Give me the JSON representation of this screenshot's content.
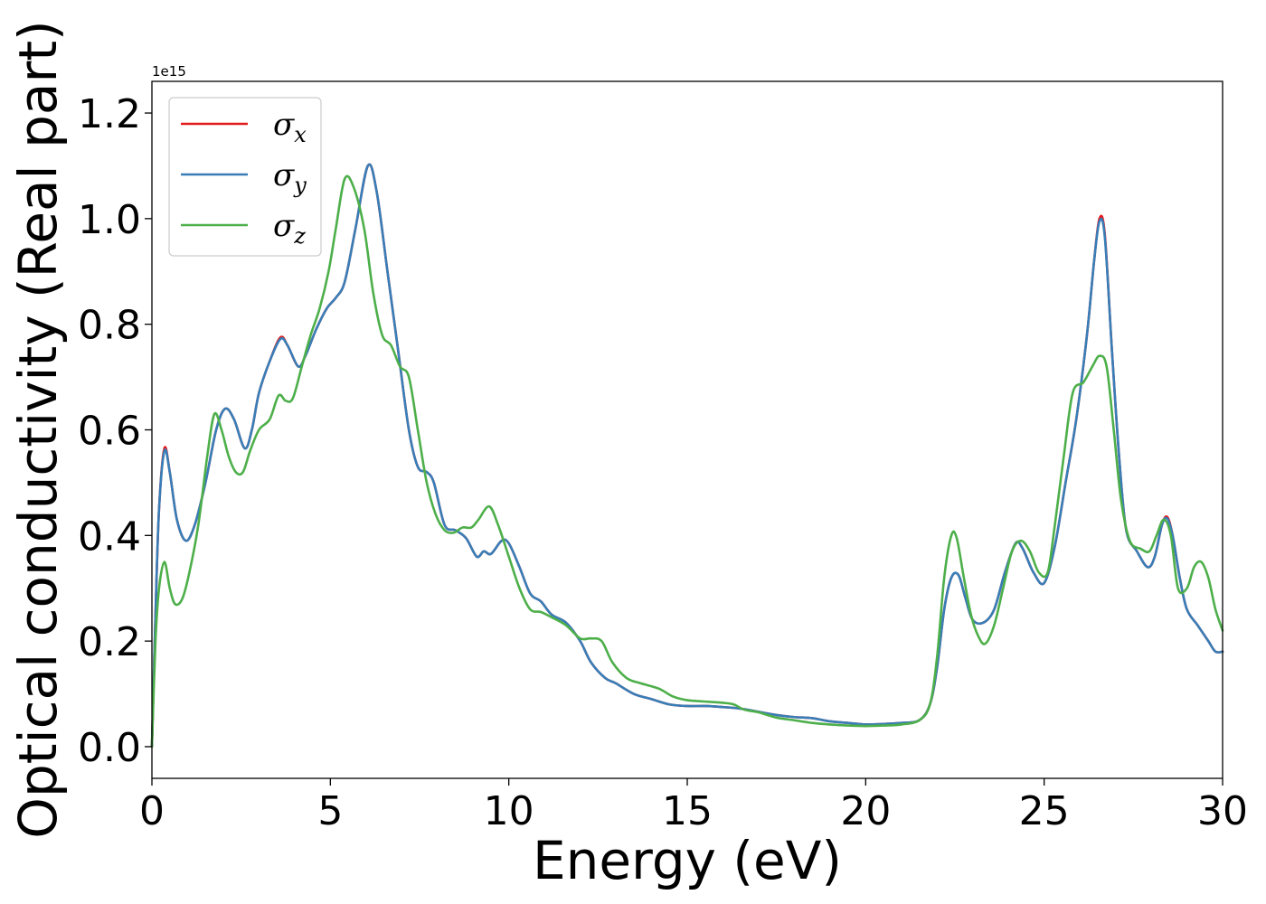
{
  "chart_data": {
    "type": "line",
    "title": "",
    "xlabel": "Energy (eV)",
    "ylabel": "Optical conductivity (Real part)",
    "y_offset_text": "1e15",
    "xlim": [
      0,
      30
    ],
    "ylim": [
      -0.06,
      1.26
    ],
    "x_ticks": [
      0,
      5,
      10,
      15,
      20,
      25,
      30
    ],
    "x_tick_labels": [
      "0",
      "5",
      "10",
      "15",
      "20",
      "25",
      "30"
    ],
    "y_ticks": [
      0.0,
      0.2,
      0.4,
      0.6,
      0.8,
      1.0,
      1.2
    ],
    "y_tick_labels": [
      "0.0",
      "0.2",
      "0.4",
      "0.6",
      "0.8",
      "1.0",
      "1.2"
    ],
    "grid": false,
    "legend_position": "top-left",
    "series": [
      {
        "name": "σ",
        "subscript": "x",
        "color": "#e41a1c",
        "x": [
          0.0,
          0.1,
          0.2,
          0.35,
          0.5,
          0.7,
          0.95,
          1.2,
          1.5,
          1.8,
          2.05,
          2.3,
          2.6,
          2.8,
          3.0,
          3.3,
          3.6,
          3.8,
          4.1,
          4.3,
          4.6,
          4.9,
          5.15,
          5.4,
          5.7,
          6.05,
          6.3,
          6.6,
          6.9,
          7.2,
          7.45,
          7.7,
          7.9,
          8.2,
          8.5,
          8.8,
          9.1,
          9.3,
          9.5,
          9.8,
          10.0,
          10.3,
          10.6,
          10.9,
          11.2,
          11.6,
          12.0,
          12.3,
          12.7,
          13.0,
          13.5,
          14.0,
          14.5,
          15.0,
          15.5,
          16.0,
          16.5,
          17.0,
          17.5,
          18.0,
          18.5,
          19.0,
          19.5,
          20.0,
          20.5,
          21.0,
          21.5,
          21.8,
          22.0,
          22.2,
          22.4,
          22.6,
          22.8,
          23.0,
          23.3,
          23.6,
          23.9,
          24.2,
          24.4,
          24.7,
          25.0,
          25.3,
          25.6,
          25.9,
          26.2,
          26.4,
          26.55,
          26.7,
          26.9,
          27.1,
          27.3,
          27.6,
          27.9,
          28.1,
          28.3,
          28.45,
          28.6,
          28.8,
          29.0,
          29.3,
          29.6,
          29.8,
          30.0
        ],
        "values": [
          0.0,
          0.25,
          0.45,
          0.565,
          0.52,
          0.43,
          0.39,
          0.42,
          0.5,
          0.6,
          0.64,
          0.62,
          0.565,
          0.6,
          0.67,
          0.73,
          0.775,
          0.76,
          0.72,
          0.74,
          0.79,
          0.83,
          0.85,
          0.88,
          0.98,
          1.1,
          1.05,
          0.9,
          0.75,
          0.6,
          0.53,
          0.52,
          0.5,
          0.42,
          0.41,
          0.395,
          0.36,
          0.37,
          0.365,
          0.39,
          0.385,
          0.34,
          0.29,
          0.275,
          0.25,
          0.235,
          0.2,
          0.16,
          0.13,
          0.12,
          0.1,
          0.09,
          0.08,
          0.077,
          0.077,
          0.075,
          0.072,
          0.066,
          0.06,
          0.056,
          0.054,
          0.048,
          0.045,
          0.042,
          0.043,
          0.045,
          0.05,
          0.08,
          0.15,
          0.26,
          0.32,
          0.325,
          0.28,
          0.24,
          0.235,
          0.26,
          0.33,
          0.385,
          0.375,
          0.33,
          0.31,
          0.38,
          0.5,
          0.62,
          0.78,
          0.92,
          1.0,
          0.97,
          0.75,
          0.55,
          0.41,
          0.37,
          0.34,
          0.36,
          0.42,
          0.435,
          0.4,
          0.32,
          0.26,
          0.23,
          0.2,
          0.18,
          0.18
        ]
      },
      {
        "name": "σ",
        "subscript": "y",
        "color": "#377eb8",
        "x": [
          0.0,
          0.1,
          0.2,
          0.35,
          0.5,
          0.7,
          0.95,
          1.2,
          1.5,
          1.8,
          2.05,
          2.3,
          2.6,
          2.8,
          3.0,
          3.3,
          3.6,
          3.8,
          4.1,
          4.3,
          4.6,
          4.9,
          5.15,
          5.4,
          5.7,
          6.05,
          6.3,
          6.6,
          6.9,
          7.2,
          7.45,
          7.7,
          7.9,
          8.2,
          8.5,
          8.8,
          9.1,
          9.3,
          9.5,
          9.8,
          10.0,
          10.3,
          10.6,
          10.9,
          11.2,
          11.6,
          12.0,
          12.3,
          12.7,
          13.0,
          13.5,
          14.0,
          14.5,
          15.0,
          15.5,
          16.0,
          16.5,
          17.0,
          17.5,
          18.0,
          18.5,
          19.0,
          19.5,
          20.0,
          20.5,
          21.0,
          21.5,
          21.8,
          22.0,
          22.2,
          22.4,
          22.6,
          22.8,
          23.0,
          23.3,
          23.6,
          23.9,
          24.2,
          24.4,
          24.7,
          25.0,
          25.3,
          25.6,
          25.9,
          26.2,
          26.4,
          26.55,
          26.7,
          26.9,
          27.1,
          27.3,
          27.6,
          27.9,
          28.1,
          28.3,
          28.45,
          28.6,
          28.8,
          29.0,
          29.3,
          29.6,
          29.8,
          30.0
        ],
        "values": [
          0.0,
          0.25,
          0.45,
          0.56,
          0.52,
          0.43,
          0.39,
          0.42,
          0.5,
          0.6,
          0.64,
          0.62,
          0.565,
          0.6,
          0.67,
          0.73,
          0.772,
          0.76,
          0.72,
          0.74,
          0.79,
          0.83,
          0.85,
          0.88,
          0.98,
          1.1,
          1.05,
          0.9,
          0.75,
          0.6,
          0.53,
          0.52,
          0.5,
          0.42,
          0.41,
          0.395,
          0.36,
          0.37,
          0.365,
          0.39,
          0.385,
          0.34,
          0.29,
          0.275,
          0.25,
          0.235,
          0.2,
          0.16,
          0.13,
          0.12,
          0.1,
          0.09,
          0.08,
          0.077,
          0.077,
          0.075,
          0.072,
          0.066,
          0.06,
          0.056,
          0.054,
          0.048,
          0.045,
          0.042,
          0.043,
          0.045,
          0.05,
          0.08,
          0.15,
          0.26,
          0.32,
          0.325,
          0.28,
          0.24,
          0.235,
          0.26,
          0.33,
          0.385,
          0.375,
          0.33,
          0.31,
          0.38,
          0.5,
          0.62,
          0.78,
          0.92,
          0.995,
          0.965,
          0.75,
          0.55,
          0.41,
          0.37,
          0.34,
          0.36,
          0.42,
          0.432,
          0.4,
          0.32,
          0.26,
          0.23,
          0.2,
          0.18,
          0.18
        ]
      },
      {
        "name": "σ",
        "subscript": "z",
        "color": "#4daf4a",
        "x": [
          0.0,
          0.1,
          0.2,
          0.35,
          0.5,
          0.65,
          0.85,
          1.05,
          1.3,
          1.55,
          1.75,
          1.95,
          2.15,
          2.35,
          2.55,
          2.75,
          3.0,
          3.3,
          3.55,
          3.75,
          3.95,
          4.2,
          4.45,
          4.7,
          4.95,
          5.15,
          5.4,
          5.65,
          5.95,
          6.2,
          6.45,
          6.7,
          6.95,
          7.2,
          7.45,
          7.7,
          7.95,
          8.2,
          8.45,
          8.7,
          8.95,
          9.15,
          9.45,
          9.7,
          10.0,
          10.3,
          10.6,
          10.9,
          11.2,
          11.6,
          12.0,
          12.3,
          12.6,
          12.9,
          13.3,
          13.7,
          14.2,
          14.6,
          15.0,
          15.6,
          16.0,
          16.3,
          16.6,
          17.0,
          17.5,
          18.0,
          18.5,
          19.0,
          19.5,
          20.0,
          20.5,
          21.0,
          21.5,
          21.8,
          22.0,
          22.2,
          22.4,
          22.55,
          22.75,
          22.95,
          23.15,
          23.35,
          23.6,
          23.85,
          24.1,
          24.35,
          24.6,
          24.85,
          25.1,
          25.3,
          25.55,
          25.8,
          26.1,
          26.35,
          26.55,
          26.75,
          26.95,
          27.15,
          27.4,
          27.7,
          27.95,
          28.15,
          28.35,
          28.55,
          28.75,
          29.0,
          29.2,
          29.4,
          29.6,
          29.8,
          30.0
        ],
        "values": [
          0.0,
          0.2,
          0.3,
          0.35,
          0.3,
          0.27,
          0.28,
          0.33,
          0.42,
          0.55,
          0.63,
          0.6,
          0.55,
          0.52,
          0.52,
          0.56,
          0.6,
          0.62,
          0.665,
          0.655,
          0.66,
          0.72,
          0.78,
          0.83,
          0.9,
          0.98,
          1.075,
          1.06,
          0.98,
          0.86,
          0.78,
          0.76,
          0.72,
          0.7,
          0.6,
          0.5,
          0.44,
          0.41,
          0.405,
          0.415,
          0.415,
          0.43,
          0.455,
          0.42,
          0.36,
          0.3,
          0.26,
          0.255,
          0.245,
          0.23,
          0.205,
          0.205,
          0.2,
          0.16,
          0.13,
          0.12,
          0.11,
          0.095,
          0.088,
          0.085,
          0.083,
          0.08,
          0.07,
          0.065,
          0.055,
          0.05,
          0.045,
          0.042,
          0.04,
          0.039,
          0.04,
          0.042,
          0.05,
          0.08,
          0.17,
          0.32,
          0.4,
          0.395,
          0.32,
          0.25,
          0.21,
          0.195,
          0.23,
          0.3,
          0.37,
          0.39,
          0.37,
          0.33,
          0.33,
          0.42,
          0.55,
          0.67,
          0.69,
          0.72,
          0.74,
          0.72,
          0.6,
          0.47,
          0.39,
          0.375,
          0.37,
          0.4,
          0.43,
          0.4,
          0.3,
          0.3,
          0.34,
          0.35,
          0.32,
          0.26,
          0.22
        ]
      }
    ]
  }
}
